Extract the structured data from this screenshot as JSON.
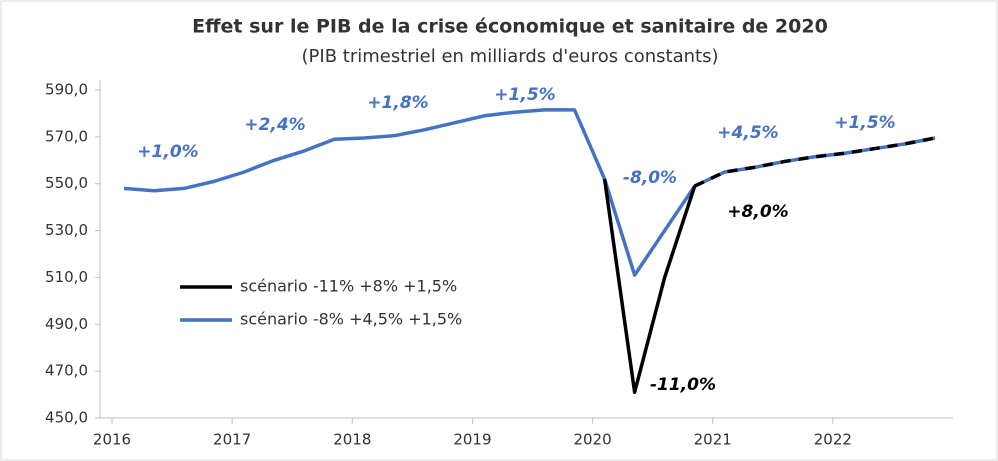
{
  "chart_data": {
    "type": "line",
    "title": "Effet sur le PIB de la crise économique et sanitaire de 2020",
    "subtitle": "(PIB trimestriel en milliards d'euros constants)",
    "x": [
      2016.1,
      2016.35,
      2016.6,
      2016.85,
      2017.1,
      2017.35,
      2017.6,
      2017.85,
      2018.1,
      2018.35,
      2018.6,
      2018.85,
      2019.1,
      2019.35,
      2019.6,
      2019.85,
      2020.1,
      2020.35,
      2020.6,
      2020.85,
      2021.1,
      2021.35,
      2021.6,
      2021.85,
      2022.1,
      2022.35,
      2022.6,
      2022.85
    ],
    "series": [
      {
        "name": "scénario -11% +8% +1,5%",
        "color": "#000000",
        "values": [
          null,
          null,
          null,
          null,
          null,
          null,
          null,
          null,
          null,
          null,
          null,
          null,
          null,
          null,
          null,
          null,
          552,
          461,
          510,
          549,
          555,
          557,
          559.5,
          561.5,
          563,
          565,
          567,
          569.5
        ]
      },
      {
        "name": "scénario -8% +4,5% +1,5%",
        "color": "#4472c4",
        "values": [
          548,
          547,
          548,
          551,
          555,
          560,
          564,
          569,
          569.5,
          570.5,
          573,
          576,
          579,
          580.5,
          581.5,
          581.5,
          552,
          511,
          530,
          549,
          555,
          557,
          559.5,
          561.5,
          563,
          565,
          567,
          569.5
        ]
      }
    ],
    "xlim": [
      2015.9,
      2023.0
    ],
    "xticks": [
      2016,
      2017,
      2018,
      2019,
      2020,
      2021,
      2022
    ],
    "ylim": [
      450,
      590
    ],
    "yticks": [
      {
        "value": 450,
        "label": "450,0"
      },
      {
        "value": 470,
        "label": "470,0"
      },
      {
        "value": 490,
        "label": "490,0"
      },
      {
        "value": 510,
        "label": "510,0"
      },
      {
        "value": 530,
        "label": "530,0"
      },
      {
        "value": 550,
        "label": "550,0"
      },
      {
        "value": 570,
        "label": "570,0"
      },
      {
        "value": 590,
        "label": "590,0"
      }
    ],
    "annotations": [
      {
        "text": "+1,0%",
        "color": "#4472c4"
      },
      {
        "text": "+2,4%",
        "color": "#4472c4"
      },
      {
        "text": "+1,8%",
        "color": "#4472c4"
      },
      {
        "text": "+1,5%",
        "color": "#4472c4"
      },
      {
        "text": "-8,0%",
        "color": "#4472c4"
      },
      {
        "text": "+4,5%",
        "color": "#4472c4"
      },
      {
        "text": "+1,5%",
        "color": "#4472c4"
      },
      {
        "text": "+8,0%",
        "color": "#000000"
      },
      {
        "text": "-11,0%",
        "color": "#000000"
      }
    ]
  }
}
